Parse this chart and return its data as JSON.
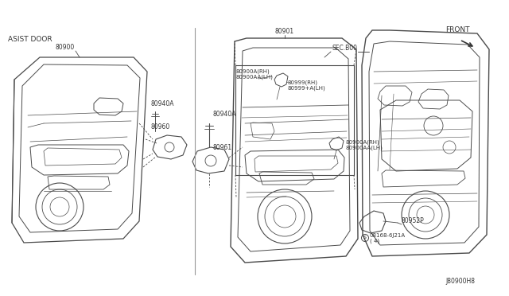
{
  "bg_color": "#ffffff",
  "fig_width": 6.4,
  "fig_height": 3.72,
  "dpi": 100,
  "text_color": "#333333",
  "line_color": "#4a4a4a",
  "labels": {
    "asist_door": "ASIST DOOR",
    "front": "FRONT",
    "sec_b00": "SEC.B00",
    "b80900": "80900",
    "b80901": "80901",
    "b80940a_1": "80940A",
    "b80960": "80960",
    "b80940a_2": "80940A",
    "b80961": "80961",
    "b80900a_rh": "80900A(RH)",
    "b80900aa_lh": "80900AA(LH)",
    "b80999_rh": "80999(RH)",
    "b80999_4_lh": "80999+A(LH)",
    "b80900a_rh2": "80900A(RH)",
    "b80900aa_lh2": "80900AA(LH)",
    "b80952p": "80952P",
    "s08168": "S08168-6J21A",
    "s08168b": "( 4)",
    "j80900h8": "J80900H8"
  }
}
